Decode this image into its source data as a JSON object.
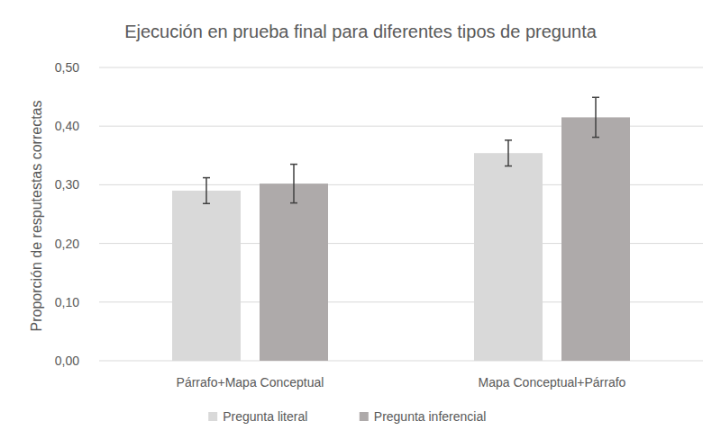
{
  "chart_data": {
    "type": "bar",
    "title": "Ejecución en prueba final para diferentes tipos de pregunta",
    "y_label": "Proporción de resputestas correctas",
    "categories": [
      "Párrafo+Mapa Conceptual",
      "Mapa Conceptual+Párrafo"
    ],
    "series": [
      {
        "name": "Pregunta literal",
        "color": "#d9d9d9",
        "values": [
          0.29,
          0.354
        ],
        "errors": [
          0.022,
          0.022
        ]
      },
      {
        "name": "Pregunta inferencial",
        "color": "#aeaaaa",
        "values": [
          0.302,
          0.415
        ],
        "errors": [
          0.033,
          0.034
        ]
      }
    ],
    "ylim": [
      0,
      0.5
    ],
    "yticks": [
      {
        "value": 0,
        "label": "0,00"
      },
      {
        "value": 0.1,
        "label": "0,10"
      },
      {
        "value": 0.2,
        "label": "0,20"
      },
      {
        "value": 0.3,
        "label": "0,30"
      },
      {
        "value": 0.4,
        "label": "0,40"
      },
      {
        "value": 0.5,
        "label": "0,50"
      }
    ],
    "grid": true,
    "legend": "bottom"
  }
}
